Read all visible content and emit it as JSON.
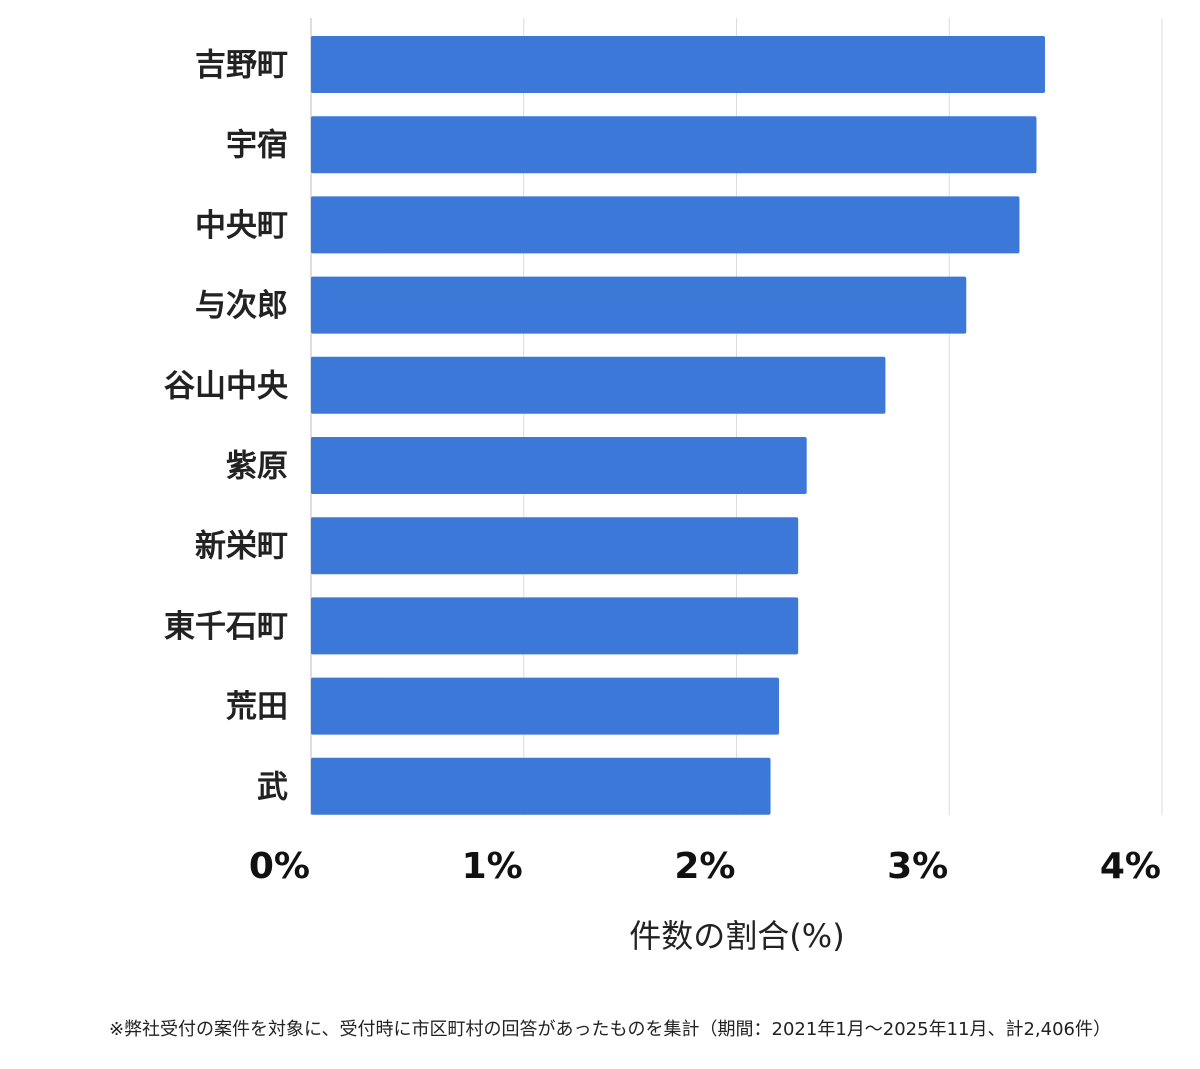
{
  "chart_data": {
    "type": "bar",
    "orientation": "horizontal",
    "categories": [
      "吉野町",
      "宇宿",
      "中央町",
      "与次郎",
      "谷山中央",
      "紫原",
      "新栄町",
      "東千石町",
      "荒田",
      "武"
    ],
    "values": [
      3.45,
      3.41,
      3.33,
      3.08,
      2.7,
      2.33,
      2.29,
      2.29,
      2.2,
      2.16
    ],
    "xlim": [
      0,
      4
    ],
    "x_ticks": [
      0,
      1,
      2,
      3,
      4
    ],
    "x_tick_labels": [
      "0%",
      "1%",
      "2%",
      "3%",
      "4%"
    ],
    "xlabel": "件数の割合(%)",
    "ylabel": "",
    "grid": "vertical",
    "bar_color": "#3b78d8"
  },
  "footnote": "※弊社受付の案件を対象に、受付時に市区町村の回答があったものを集計（期間：2021年1月～2025年11月、計2,406件）"
}
